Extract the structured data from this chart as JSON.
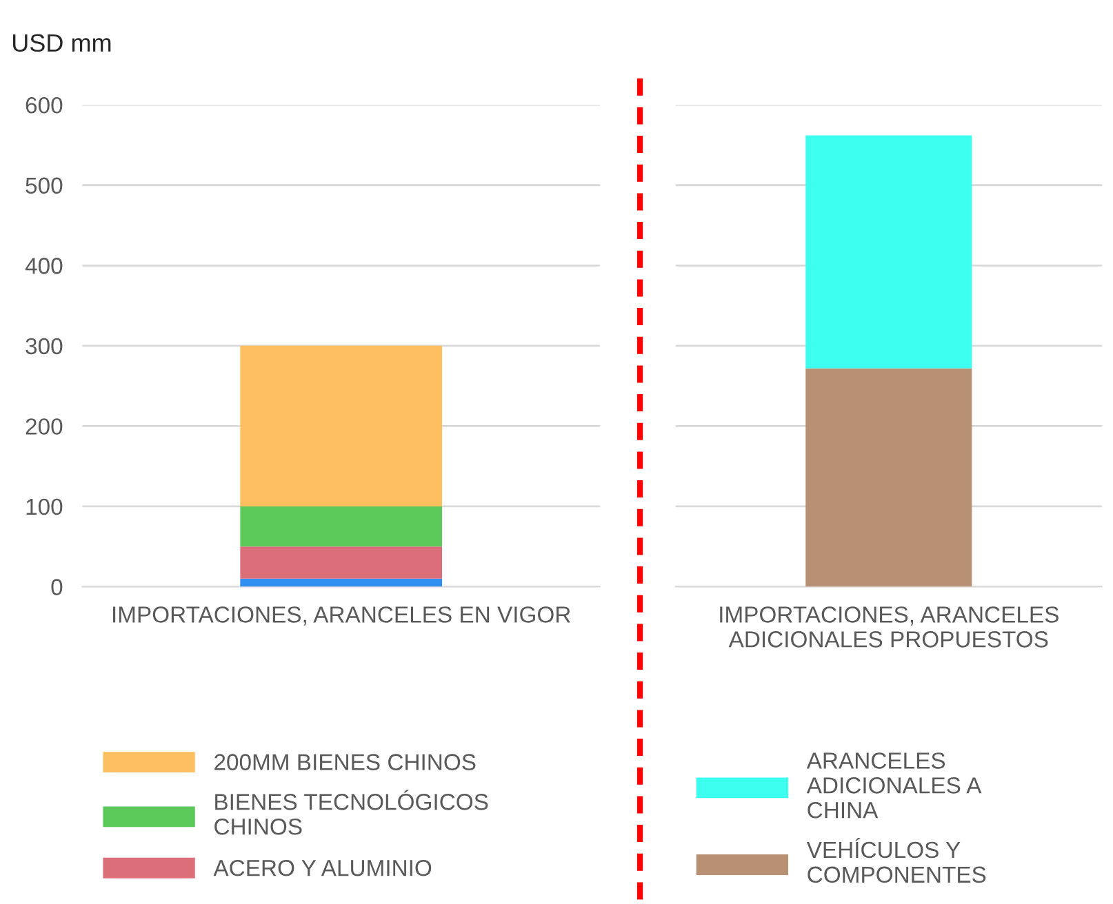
{
  "chart_data": [
    {
      "type": "bar",
      "stacked": true,
      "ylabel": "USD mm",
      "categories": [
        "IMPORTACIONES, ARANCELES EN VIGOR"
      ],
      "ylim": [
        0,
        600
      ],
      "yticks": [
        0,
        100,
        200,
        300,
        400,
        500,
        600
      ],
      "grid": "y",
      "legend": "bottom",
      "series": [
        {
          "color": "#2e8ff0",
          "values": [
            10
          ]
        },
        {
          "name": "ACERO Y ALUMINIO",
          "color": "#dc6e7a",
          "values": [
            40
          ]
        },
        {
          "name": "BIENES TECNOLÓGICOS CHINOS",
          "color": "#5bc85a",
          "values": [
            50
          ]
        },
        {
          "name": "200MM BIENES CHINOS",
          "color": "#fdbf5f",
          "values": [
            200
          ]
        }
      ]
    },
    {
      "type": "bar",
      "stacked": true,
      "categories": [
        "IMPORTACIONES, ARANCELES ADICIONALES PROPUESTOS"
      ],
      "ylim": [
        0,
        600
      ],
      "yticks": [
        0,
        100,
        200,
        300,
        400,
        500,
        600
      ],
      "grid": "y",
      "legend": "bottom",
      "tick_labels": "x",
      "series": [
        {
          "name": "VEHÍCULOS Y COMPONENTES",
          "color": "#b89074",
          "values": [
            272
          ]
        },
        {
          "name": "ARANCELES ADICIONALES A CHINA",
          "color": "#3cfff0",
          "values": [
            290
          ]
        }
      ]
    }
  ]
}
